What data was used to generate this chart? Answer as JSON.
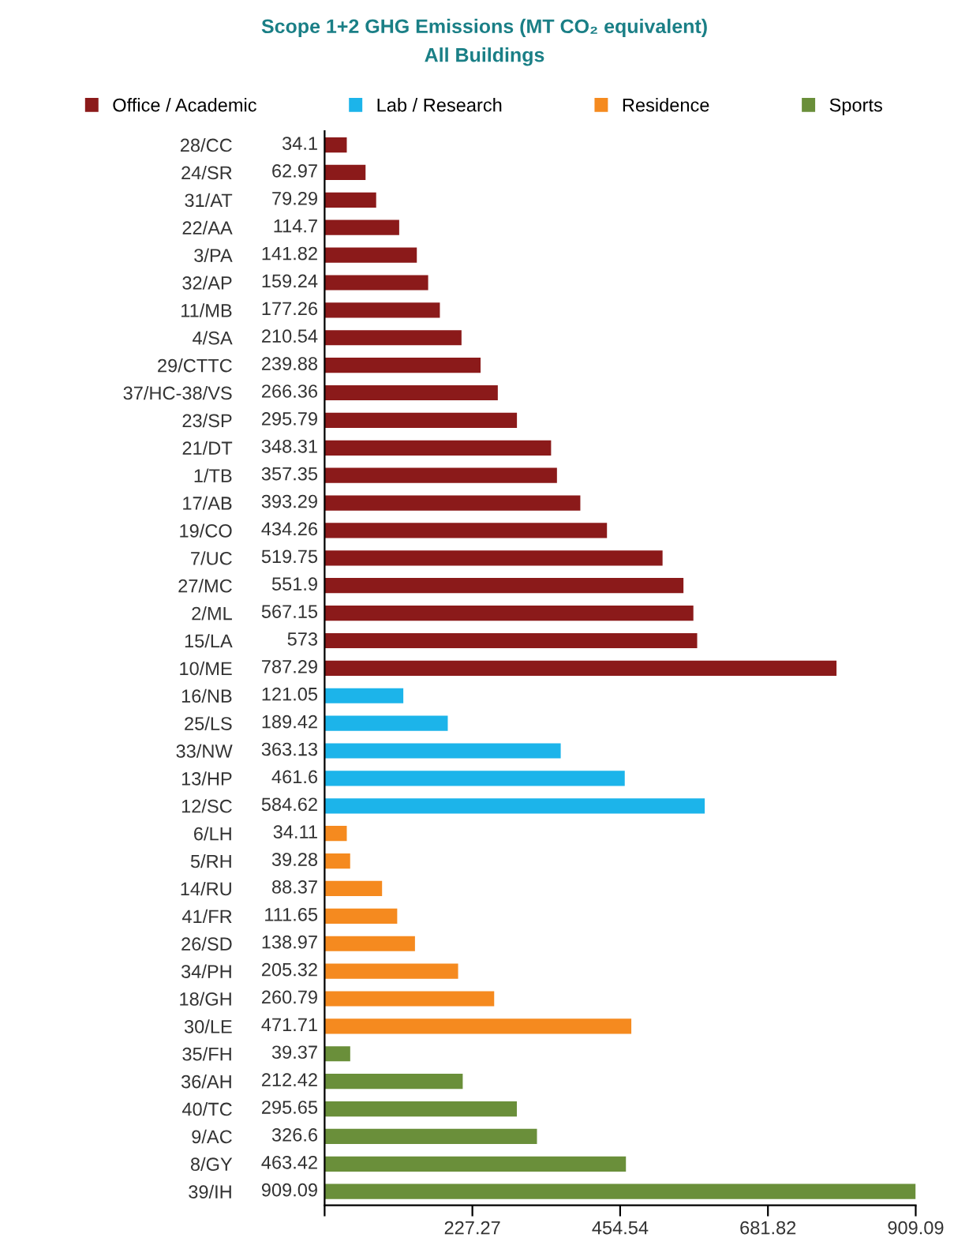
{
  "chart_data": {
    "type": "bar",
    "orientation": "horizontal",
    "title": "Scope 1+2 GHG Emissions (MT CO₂ equivalent)",
    "subtitle": "All Buildings",
    "categories": [
      "28/CC",
      "24/SR",
      "31/AT",
      "22/AA",
      "3/PA",
      "32/AP",
      "11/MB",
      "4/SA",
      "29/CTTC",
      "37/HC-38/VS",
      "23/SP",
      "21/DT",
      "1/TB",
      "17/AB",
      "19/CO",
      "7/UC",
      "27/MC",
      "2/ML",
      "15/LA",
      "10/ME",
      "16/NB",
      "25/LS",
      "33/NW",
      "13/HP",
      "12/SC",
      "6/LH",
      "5/RH",
      "14/RU",
      "41/FR",
      "26/SD",
      "34/PH",
      "18/GH",
      "30/LE",
      "35/FH",
      "36/AH",
      "40/TC",
      "9/AC",
      "8/GY",
      "39/IH"
    ],
    "series": [
      {
        "name": "Office / Academic",
        "color": "#8b1a1a",
        "values": [
          34.1,
          62.97,
          79.29,
          114.7,
          141.82,
          159.24,
          177.26,
          210.54,
          239.88,
          266.36,
          295.79,
          348.31,
          357.35,
          393.29,
          434.26,
          519.75,
          551.9,
          567.15,
          573,
          787.29,
          null,
          null,
          null,
          null,
          null,
          null,
          null,
          null,
          null,
          null,
          null,
          null,
          null,
          null,
          null,
          null,
          null,
          null,
          null
        ]
      },
      {
        "name": "Lab / Research",
        "color": "#1cb4ea",
        "values": [
          null,
          null,
          null,
          null,
          null,
          null,
          null,
          null,
          null,
          null,
          null,
          null,
          null,
          null,
          null,
          null,
          null,
          null,
          null,
          null,
          121.05,
          189.42,
          363.13,
          461.6,
          584.62,
          null,
          null,
          null,
          null,
          null,
          null,
          null,
          null,
          null,
          null,
          null,
          null,
          null,
          null
        ]
      },
      {
        "name": "Residence",
        "color": "#f58a1f",
        "values": [
          null,
          null,
          null,
          null,
          null,
          null,
          null,
          null,
          null,
          null,
          null,
          null,
          null,
          null,
          null,
          null,
          null,
          null,
          null,
          null,
          null,
          null,
          null,
          null,
          null,
          34.11,
          39.28,
          88.37,
          111.65,
          138.97,
          205.32,
          260.79,
          471.71,
          null,
          null,
          null,
          null,
          null,
          null
        ]
      },
      {
        "name": "Sports",
        "color": "#6a8f3a",
        "values": [
          null,
          null,
          null,
          null,
          null,
          null,
          null,
          null,
          null,
          null,
          null,
          null,
          null,
          null,
          null,
          null,
          null,
          null,
          null,
          null,
          null,
          null,
          null,
          null,
          null,
          null,
          null,
          null,
          null,
          null,
          null,
          null,
          null,
          39.37,
          212.42,
          295.65,
          326.6,
          463.42,
          909.09
        ]
      }
    ],
    "xlim": [
      0,
      909.09
    ],
    "xticks": [
      {
        "value": 0,
        "label": null
      },
      227.27,
      454.54,
      681.82,
      909.09
    ],
    "data_labels": true,
    "legend": "top",
    "grid": false
  }
}
